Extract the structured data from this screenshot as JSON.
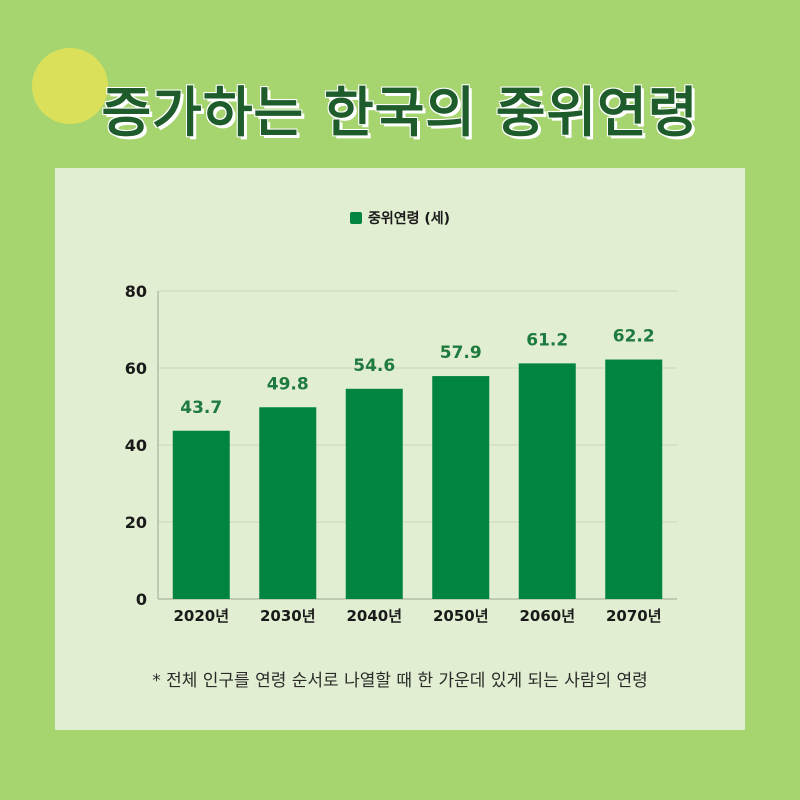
{
  "title": "증가하는 한국의 중위연령",
  "colors": {
    "background": "#a6d56f",
    "panel": "#e1eed1",
    "bar": "#00843f",
    "label": "#1f7a3f",
    "title": "#1e5c2c"
  },
  "chart_data": {
    "type": "bar",
    "categories": [
      "2020년",
      "2030년",
      "2040년",
      "2050년",
      "2060년",
      "2070년"
    ],
    "series": [
      {
        "name": "중위연령 (세)",
        "values": [
          43.7,
          49.8,
          54.6,
          57.9,
          61.2,
          62.2
        ]
      }
    ],
    "data_labels": [
      "43.7",
      "49.8",
      "54.6",
      "57.9",
      "61.2",
      "62.2"
    ],
    "ylim": [
      0,
      80
    ],
    "yticks": [
      0,
      20,
      40,
      60,
      80
    ],
    "grid": true,
    "legend_position": "top-center"
  },
  "footnote": "* 전체 인구를 연령 순서로 나열할 때 한 가운데 있게 되는 사람의 연령"
}
